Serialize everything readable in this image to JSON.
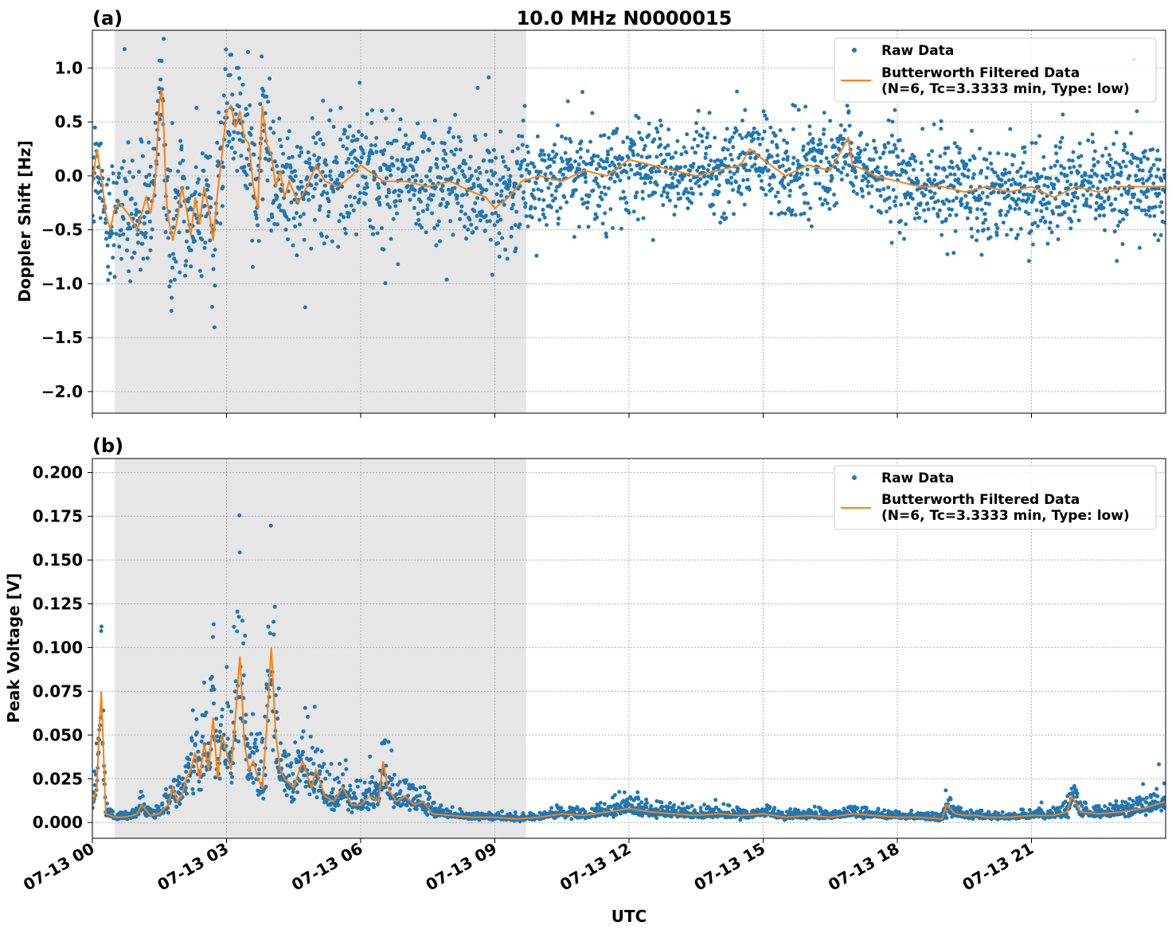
{
  "figure_title": "10.0 MHz N0000015",
  "chart_data": [
    {
      "type": "scatter",
      "panel_label": "(a)",
      "title": "10.0 MHz N0000015",
      "ylabel": "Doppler Shift [Hz]",
      "xlabel": "",
      "xlim_hours": [
        0,
        24
      ],
      "ylim": [
        -2.2,
        1.35
      ],
      "yticks": [
        1.0,
        0.5,
        0.0,
        -0.5,
        -1.0,
        -1.5,
        -2.0
      ],
      "ytick_labels": [
        "1.0",
        "0.5",
        "0.0",
        "−0.5",
        "−1.0",
        "−1.5",
        "−2.0"
      ],
      "shaded_interval_hours": [
        0.5,
        9.7
      ],
      "grid": true,
      "legend_position": "top-right",
      "series": [
        {
          "name": "Raw Data",
          "kind": "points",
          "color": "#1f77b4"
        },
        {
          "name": "Butterworth Filtered Data\n(N=6, Tc=3.3333 min, Type: low)",
          "kind": "line",
          "color": "#ff7f0e"
        }
      ],
      "legend": [
        "Raw Data",
        "Butterworth Filtered Data",
        "(N=6, Tc=3.3333 min, Type: low)"
      ],
      "filtered_hours": [
        0.0,
        0.1,
        0.2,
        0.3,
        0.4,
        0.5,
        0.6,
        0.8,
        1.0,
        1.2,
        1.3,
        1.4,
        1.5,
        1.55,
        1.6,
        1.65,
        1.7,
        1.8,
        1.9,
        2.0,
        2.1,
        2.2,
        2.3,
        2.4,
        2.5,
        2.6,
        2.7,
        2.8,
        2.9,
        3.0,
        3.1,
        3.2,
        3.3,
        3.4,
        3.5,
        3.6,
        3.7,
        3.8,
        3.9,
        4.0,
        4.1,
        4.2,
        4.3,
        4.4,
        4.6,
        4.8,
        5.0,
        5.2,
        5.5,
        5.8,
        6.0,
        6.5,
        7.0,
        7.5,
        8.0,
        8.5,
        8.8,
        9.0,
        9.3,
        9.6,
        10.0,
        10.5,
        11.0,
        11.5,
        12.0,
        12.5,
        13.0,
        13.5,
        14.0,
        14.5,
        14.7,
        15.0,
        15.5,
        16.0,
        16.5,
        16.9,
        17.0,
        17.3,
        17.5,
        18.0,
        18.5,
        19.0,
        19.5,
        20.0,
        20.5,
        21.0,
        21.5,
        22.0,
        22.5,
        23.0,
        23.5,
        24.0
      ],
      "filtered_values": [
        -0.1,
        0.25,
        0.0,
        -0.35,
        -0.5,
        -0.3,
        -0.25,
        -0.35,
        -0.5,
        -0.2,
        -0.35,
        -0.1,
        0.7,
        0.8,
        0.4,
        -0.2,
        -0.4,
        -0.6,
        -0.4,
        -0.1,
        -0.3,
        -0.55,
        -0.2,
        -0.45,
        -0.1,
        -0.3,
        -0.6,
        -0.15,
        0.2,
        0.6,
        0.65,
        0.45,
        0.6,
        0.35,
        0.3,
        -0.1,
        -0.3,
        0.65,
        0.3,
        0.2,
        -0.1,
        0.05,
        -0.2,
        -0.05,
        -0.25,
        -0.1,
        0.1,
        -0.05,
        -0.1,
        0.0,
        0.1,
        -0.05,
        -0.05,
        -0.1,
        -0.05,
        -0.15,
        -0.2,
        -0.3,
        -0.2,
        -0.05,
        0.0,
        -0.05,
        0.05,
        0.0,
        0.15,
        0.1,
        0.05,
        0.0,
        0.05,
        0.1,
        0.25,
        0.15,
        0.0,
        0.1,
        0.05,
        0.35,
        0.1,
        0.05,
        0.0,
        -0.05,
        -0.1,
        -0.1,
        -0.15,
        -0.1,
        -0.15,
        -0.1,
        -0.2,
        -0.1,
        -0.15,
        -0.1,
        -0.1,
        -0.1
      ]
    },
    {
      "type": "scatter",
      "panel_label": "(b)",
      "title": "",
      "ylabel": "Peak Voltage [V]",
      "xlabel": "UTC",
      "xlim_hours": [
        0,
        24
      ],
      "ylim": [
        -0.009,
        0.208
      ],
      "yticks": [
        0.2,
        0.175,
        0.15,
        0.125,
        0.1,
        0.075,
        0.05,
        0.025,
        0.0
      ],
      "ytick_labels": [
        "0.200",
        "0.175",
        "0.150",
        "0.125",
        "0.100",
        "0.075",
        "0.050",
        "0.025",
        "0.000"
      ],
      "xtick_hours": [
        0,
        3,
        6,
        9,
        12,
        15,
        18,
        21
      ],
      "xtick_labels": [
        "07-13 00",
        "07-13 03",
        "07-13 06",
        "07-13 09",
        "07-13 12",
        "07-13 15",
        "07-13 18",
        "07-13 21"
      ],
      "shaded_interval_hours": [
        0.5,
        9.7
      ],
      "grid": true,
      "legend_position": "top-right",
      "series": [
        {
          "name": "Raw Data",
          "kind": "points",
          "color": "#1f77b4"
        },
        {
          "name": "Butterworth Filtered Data\n(N=6, Tc=3.3333 min, Type: low)",
          "kind": "line",
          "color": "#ff7f0e"
        }
      ],
      "legend": [
        "Raw Data",
        "Butterworth Filtered Data",
        "(N=6, Tc=3.3333 min, Type: low)"
      ],
      "filtered_hours": [
        0.0,
        0.1,
        0.15,
        0.2,
        0.25,
        0.3,
        0.5,
        0.7,
        0.9,
        1.0,
        1.1,
        1.3,
        1.5,
        1.6,
        1.7,
        1.8,
        1.9,
        2.0,
        2.1,
        2.2,
        2.3,
        2.4,
        2.5,
        2.6,
        2.7,
        2.8,
        2.9,
        3.0,
        3.1,
        3.2,
        3.3,
        3.4,
        3.5,
        3.6,
        3.7,
        3.8,
        3.9,
        4.0,
        4.1,
        4.2,
        4.3,
        4.5,
        4.7,
        4.9,
        5.0,
        5.2,
        5.4,
        5.6,
        5.8,
        6.0,
        6.2,
        6.4,
        6.5,
        6.6,
        6.8,
        7.0,
        7.2,
        7.4,
        7.6,
        8.0,
        8.5,
        9.0,
        9.5,
        10.0,
        10.5,
        11.0,
        11.5,
        12.0,
        12.5,
        13.0,
        13.5,
        14.0,
        14.5,
        15.0,
        15.5,
        16.0,
        16.5,
        17.0,
        17.5,
        18.0,
        18.5,
        19.0,
        19.1,
        19.3,
        19.5,
        19.8,
        20.0,
        20.5,
        21.0,
        21.5,
        21.8,
        21.9,
        22.1,
        22.5,
        23.0,
        23.5,
        24.0
      ],
      "filtered_values": [
        0.01,
        0.02,
        0.05,
        0.075,
        0.04,
        0.005,
        0.003,
        0.003,
        0.004,
        0.005,
        0.01,
        0.004,
        0.005,
        0.008,
        0.01,
        0.02,
        0.012,
        0.015,
        0.025,
        0.03,
        0.04,
        0.025,
        0.045,
        0.03,
        0.06,
        0.025,
        0.05,
        0.04,
        0.03,
        0.06,
        0.095,
        0.045,
        0.03,
        0.035,
        0.025,
        0.02,
        0.055,
        0.1,
        0.05,
        0.03,
        0.025,
        0.02,
        0.035,
        0.02,
        0.03,
        0.015,
        0.012,
        0.02,
        0.01,
        0.01,
        0.015,
        0.012,
        0.035,
        0.02,
        0.012,
        0.015,
        0.01,
        0.012,
        0.005,
        0.004,
        0.003,
        0.003,
        0.002,
        0.003,
        0.005,
        0.004,
        0.006,
        0.008,
        0.006,
        0.005,
        0.004,
        0.005,
        0.004,
        0.005,
        0.003,
        0.004,
        0.003,
        0.005,
        0.004,
        0.003,
        0.003,
        0.002,
        0.01,
        0.005,
        0.004,
        0.004,
        0.003,
        0.003,
        0.004,
        0.004,
        0.006,
        0.015,
        0.006,
        0.005,
        0.006,
        0.008,
        0.012
      ]
    }
  ]
}
